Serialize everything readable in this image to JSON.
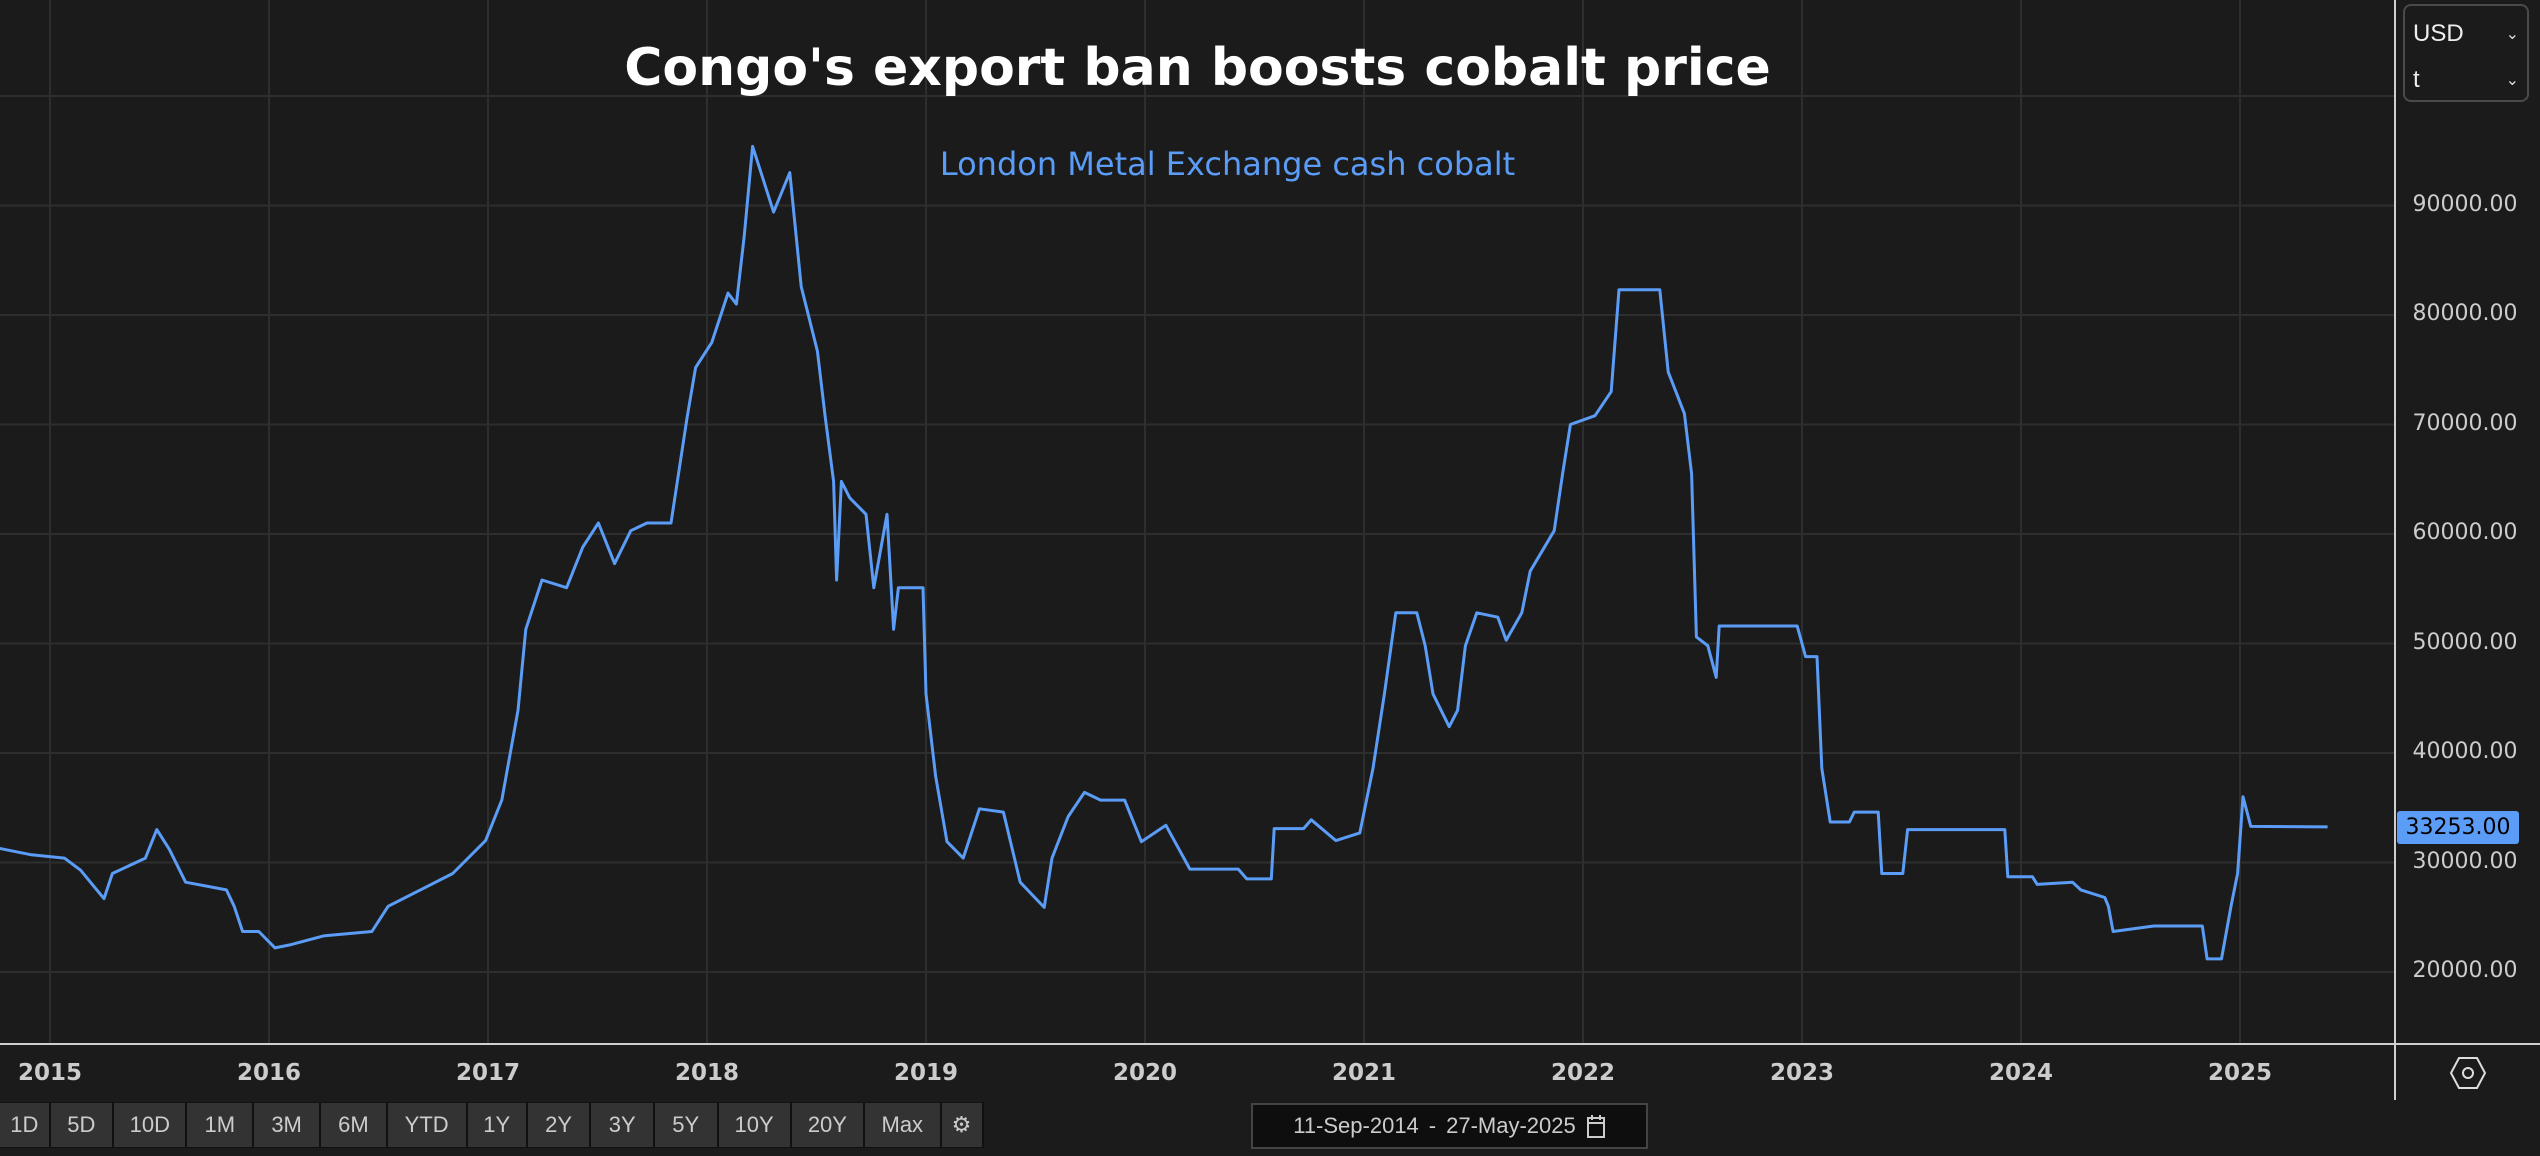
{
  "title": "Congo's export ban boosts cobalt price",
  "subtitle": "London Metal Exchange cash cobalt",
  "currency": {
    "value": "USD",
    "unit": "t"
  },
  "last_price_label": "33253.00",
  "colors": {
    "background": "#1b1b1b",
    "series": "#5b9cf6",
    "grid": "#2e2e2e",
    "axis": "#cfcfcf"
  },
  "range_buttons": [
    "1D",
    "5D",
    "10D",
    "1M",
    "3M",
    "6M",
    "YTD",
    "1Y",
    "2Y",
    "3Y",
    "5Y",
    "10Y",
    "20Y",
    "Max"
  ],
  "date_range": {
    "start": "11-Sep-2014",
    "separator": "-",
    "end": "27-May-2025"
  },
  "icons": {
    "settings": "gear-icon",
    "calendar": "calendar-icon",
    "chart_settings": "hexagon-settings-icon",
    "dropdown": "chevron-down-icon"
  },
  "chart_data": {
    "type": "line",
    "title": "Congo's export ban boosts cobalt price",
    "subtitle": "London Metal Exchange cash cobalt",
    "x_ticks": [
      "2015",
      "2016",
      "2017",
      "2018",
      "2019",
      "2020",
      "2021",
      "2022",
      "2023",
      "2024",
      "2025"
    ],
    "y_ticks": [
      "20000.00",
      "30000.00",
      "40000.00",
      "50000.00",
      "60000.00",
      "70000.00",
      "80000.00",
      "90000.00"
    ],
    "ylim": [
      12000,
      108000
    ],
    "xlim": [
      "2014-09-11",
      "2025-05-27"
    ],
    "grid": true,
    "y_axis_side": "right",
    "series": [
      {
        "x": [
          "2014-09-11",
          "2014-12-01",
          "2015-01-25",
          "2015-02-21",
          "2015-03-20",
          "2015-04-01",
          "2015-04-15",
          "2015-06-09",
          "2015-06-28",
          "2015-07-19",
          "2015-08-15",
          "2015-10-22",
          "2015-11-04",
          "2015-11-18",
          "2015-12-15",
          "2016-01-11",
          "2016-02-07",
          "2016-04-01",
          "2016-06-21",
          "2016-07-18",
          "2016-09-10",
          "2016-11-03",
          "2016-12-28",
          "2017-01-24",
          "2017-02-20",
          "2017-03-05",
          "2017-04-01",
          "2017-05-12",
          "2017-06-08",
          "2017-07-04",
          "2017-07-31",
          "2017-08-27",
          "2017-09-23",
          "2017-11-02",
          "2017-11-29",
          "2017-12-13",
          "2018-01-09",
          "2018-02-05",
          "2018-02-19",
          "2018-03-04",
          "2018-03-18",
          "2018-04-01",
          "2018-04-22",
          "2018-05-19",
          "2018-06-07",
          "2018-07-04",
          "2018-07-17",
          "2018-07-31",
          "2018-08-05",
          "2018-08-13",
          "2018-08-27",
          "2018-09-23",
          "2018-10-06",
          "2018-10-28",
          "2018-11-08",
          "2018-11-16",
          "2018-12-27",
          "2019-01-01",
          "2019-01-17",
          "2019-02-05",
          "2019-03-04",
          "2019-03-31",
          "2019-05-10",
          "2019-06-07",
          "2019-07-17",
          "2019-07-30",
          "2019-08-26",
          "2019-09-22",
          "2019-10-19",
          "2019-11-28",
          "2019-12-26",
          "2020-02-05",
          "2020-03-16",
          "2020-06-05",
          "2020-06-19",
          "2020-07-30",
          "2020-08-04",
          "2020-09-22",
          "2020-10-05",
          "2020-11-15",
          "2020-12-25",
          "2021-01-16",
          "2021-02-04",
          "2021-02-23",
          "2021-03-30",
          "2021-04-13",
          "2021-04-26",
          "2021-05-23",
          "2021-06-06",
          "2021-06-19",
          "2021-07-08",
          "2021-08-12",
          "2021-08-26",
          "2021-09-21",
          "2021-10-05",
          "2021-11-14",
          "2021-11-28",
          "2021-12-11",
          "2022-01-21",
          "2022-02-17",
          "2022-03-02",
          "2022-05-09",
          "2022-05-23",
          "2022-06-19",
          "2022-07-01",
          "2022-07-09",
          "2022-07-28",
          "2022-08-11",
          "2022-08-16",
          "2022-12-24",
          "2023-01-07",
          "2023-01-26",
          "2023-02-03",
          "2023-02-17",
          "2023-03-21",
          "2023-03-29",
          "2023-05-08",
          "2023-05-14",
          "2023-06-18",
          "2023-06-26",
          "2023-12-05",
          "2023-12-10",
          "2024-01-20",
          "2024-01-28",
          "2024-03-27",
          "2024-04-10",
          "2024-05-20",
          "2024-05-26",
          "2024-06-03",
          "2024-08-10",
          "2024-10-30",
          "2024-11-07",
          "2024-12-01",
          "2024-12-17",
          "2024-12-28",
          "2025-01-06",
          "2025-01-19",
          "2025-05-27"
        ],
        "y": [
          31600,
          30700,
          30400,
          29300,
          27500,
          26700,
          29000,
          30400,
          33000,
          31200,
          28200,
          27500,
          26000,
          23700,
          23700,
          22200,
          22500,
          23300,
          23700,
          26000,
          27500,
          29000,
          32000,
          35700,
          43900,
          51300,
          55800,
          55100,
          58800,
          61000,
          57300,
          60300,
          61000,
          61000,
          70700,
          75200,
          77500,
          82000,
          81000,
          87200,
          95400,
          93000,
          89400,
          93000,
          82600,
          76700,
          70700,
          64800,
          55800,
          64800,
          63300,
          61800,
          55100,
          61800,
          51300,
          55100,
          55100,
          45400,
          37900,
          31900,
          30400,
          34900,
          34600,
          28200,
          25900,
          30400,
          34200,
          36400,
          35700,
          35700,
          31900,
          33400,
          29400,
          29400,
          28500,
          28500,
          33100,
          33100,
          33900,
          32000,
          32700,
          38600,
          45400,
          52800,
          52800,
          49800,
          45400,
          42400,
          43900,
          49800,
          52800,
          52400,
          50300,
          52800,
          56600,
          60300,
          65500,
          70000,
          70800,
          73000,
          82300,
          82300,
          74800,
          71000,
          65500,
          50600,
          49800,
          46900,
          51600,
          51600,
          48800,
          48800,
          38600,
          33700,
          33700,
          34600,
          34600,
          29000,
          29000,
          33000,
          33000,
          28700,
          28700,
          28000,
          28200,
          27500,
          26800,
          26000,
          23700,
          24200,
          24200,
          21200,
          21200,
          26000,
          29000,
          36000,
          33300,
          33253
        ]
      }
    ]
  }
}
